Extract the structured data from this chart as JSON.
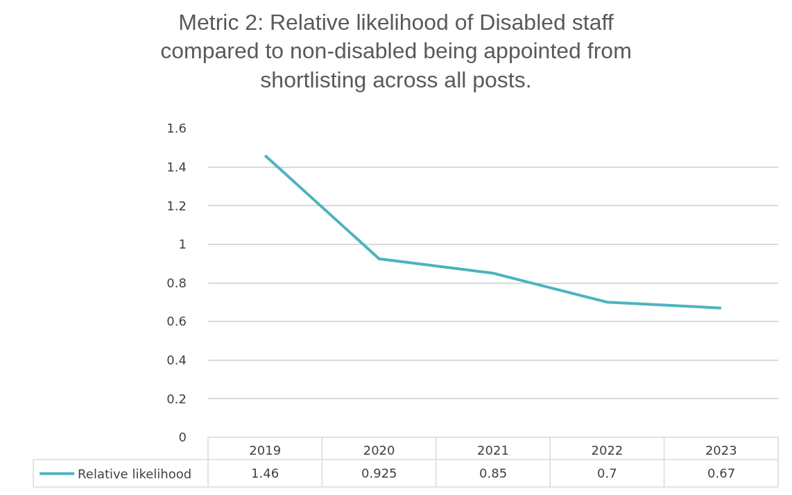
{
  "chart_data": {
    "type": "line",
    "title": "Metric 2: Relative likelihood of Disabled staff compared to non-disabled being appointed from shortlisting across all posts.",
    "categories": [
      "2019",
      "2020",
      "2021",
      "2022",
      "2023"
    ],
    "series": [
      {
        "name": "Relative likelihood",
        "color": "#4eb3be",
        "values": [
          1.46,
          0.925,
          0.85,
          0.7,
          0.67
        ]
      }
    ],
    "ylim": [
      0,
      1.6
    ],
    "yticks": [
      0,
      0.2,
      0.4,
      0.6,
      0.8,
      1,
      1.2,
      1.4,
      1.6
    ],
    "grid": "y",
    "legend": "bottom",
    "data_labels": true
  }
}
